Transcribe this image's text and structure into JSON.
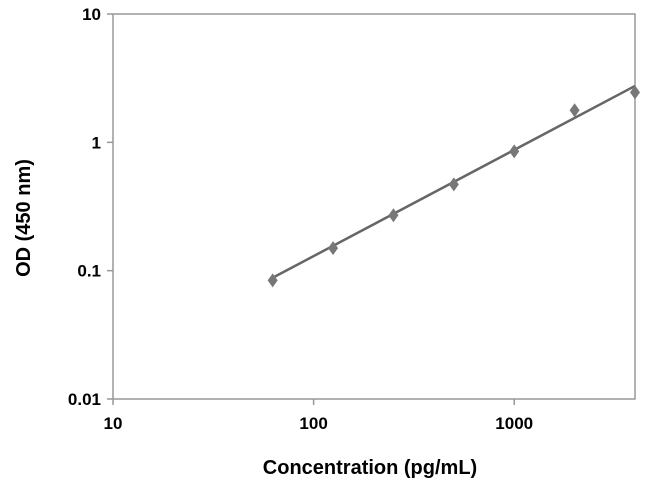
{
  "chart_data": {
    "type": "scatter",
    "title": "",
    "xlabel": "Concentration (pg/mL)",
    "ylabel": "OD (450 nm)",
    "xscale": "log",
    "yscale": "log",
    "xlim": [
      10,
      4000
    ],
    "ylim": [
      0.01,
      10
    ],
    "xticks": [
      10,
      100,
      1000
    ],
    "xtick_labels": [
      "10",
      "100",
      "1000"
    ],
    "yticks": [
      0.01,
      0.1,
      1,
      10
    ],
    "ytick_labels": [
      "0.01",
      "0.1",
      "1",
      "10"
    ],
    "grid": false,
    "legend": "none",
    "series": [
      {
        "x": [
          62.5,
          125,
          250,
          500,
          1000,
          2000,
          4000
        ],
        "y": [
          0.084,
          0.15,
          0.27,
          0.47,
          0.85,
          1.78,
          2.45
        ],
        "marker": "diamond",
        "color": "#777777"
      }
    ],
    "fit_line": {
      "x": [
        62.5,
        4000
      ],
      "y": [
        0.088,
        2.75
      ],
      "color": "#666666"
    }
  }
}
